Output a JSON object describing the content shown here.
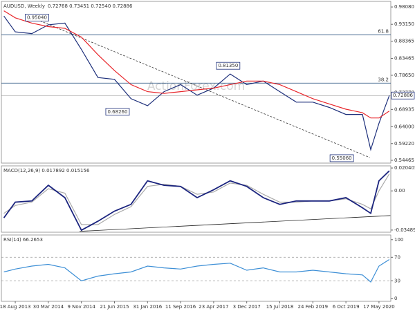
{
  "chart_data": [
    {
      "type": "line",
      "title": "AUDUSD, Weekly",
      "subtitle": "0.72768 0.73451 0.72540 0.72886",
      "watermark": "ActionForex.com",
      "x": [
        "2013-06-02",
        "2013-08-18",
        "2013-12-08",
        "2014-03-30",
        "2014-07-20",
        "2014-11-09",
        "2015-03-01",
        "2015-06-21",
        "2015-10-11",
        "2016-01-31",
        "2016-05-22",
        "2016-09-11",
        "2017-01-01",
        "2017-04-23",
        "2017-08-13",
        "2017-12-03",
        "2018-03-25",
        "2018-07-15",
        "2018-11-04",
        "2019-02-24",
        "2019-06-16",
        "2019-10-06",
        "2020-01-26",
        "2020-03-22",
        "2020-05-17",
        "2020-07-26"
      ],
      "xlim": [
        "2013-05-16",
        "2020-08-05"
      ],
      "series": [
        {
          "color": "#1c2e7a",
          "values": [
            0.955,
            0.91,
            0.905,
            0.93,
            0.935,
            0.86,
            0.78,
            0.775,
            0.72,
            0.7,
            0.74,
            0.76,
            0.73,
            0.75,
            0.79,
            0.76,
            0.77,
            0.74,
            0.71,
            0.71,
            0.695,
            0.675,
            0.675,
            0.575,
            0.65,
            0.7289
          ]
        },
        {
          "color": "#e8262b",
          "values": [
            0.97,
            0.95,
            0.935,
            0.925,
            0.92,
            0.895,
            0.845,
            0.8,
            0.76,
            0.74,
            0.735,
            0.74,
            0.745,
            0.75,
            0.76,
            0.77,
            0.77,
            0.76,
            0.74,
            0.72,
            0.705,
            0.69,
            0.68,
            0.665,
            0.665,
            0.685
          ]
        }
      ],
      "ylim": [
        0.5367,
        0.9967
      ],
      "yticks": [
        {
          "value": 0.9808,
          "label": "0.98080"
        },
        {
          "value": 0.9315,
          "label": "0.93150"
        },
        {
          "value": 0.88365,
          "label": "0.88365"
        },
        {
          "value": 0.83465,
          "label": "0.83465"
        },
        {
          "value": 0.7865,
          "label": "0.78650"
        },
        {
          "value": 0.7377,
          "label": "0.73770"
        },
        {
          "value": 0.68935,
          "label": "0.68935"
        },
        {
          "value": 0.64,
          "label": "0.64000"
        },
        {
          "value": 0.5922,
          "label": "0.59220"
        },
        {
          "value": 0.54465,
          "label": "0.54465"
        }
      ],
      "levels": [
        {
          "label": "61.8",
          "value": 0.9012,
          "color": "#1e4a7a"
        },
        {
          "label": "38.2",
          "value": 0.7642,
          "color": "#1e4a7a"
        }
      ],
      "last": {
        "value": 0.72886,
        "label": "0.72886"
      },
      "annotations": [
        {
          "label": "0.95040",
          "x": "2014-01-12",
          "value": 0.9504
        },
        {
          "label": "0.81350",
          "x": "2017-07-30",
          "value": 0.8135
        },
        {
          "label": "0.68260",
          "x": "2015-07-12",
          "value": 0.6826
        },
        {
          "label": "0.55060",
          "x": "2019-09-08",
          "value": 0.5506
        }
      ],
      "trendlines": [
        {
          "x": [
            "2014-01-12",
            "2020-03-15"
          ],
          "values": [
            0.945,
            0.5526
          ],
          "color": "#333333",
          "dashed": true
        }
      ]
    },
    {
      "type": "line",
      "title": "MACD(12,26,9) 0.017892 0.015156",
      "x": [
        "2013-06-02",
        "2013-08-18",
        "2013-12-08",
        "2014-03-30",
        "2014-07-20",
        "2014-11-09",
        "2015-03-01",
        "2015-06-21",
        "2015-10-11",
        "2016-01-31",
        "2016-05-22",
        "2016-09-11",
        "2017-01-01",
        "2017-04-23",
        "2017-08-13",
        "2017-12-03",
        "2018-03-25",
        "2018-07-15",
        "2018-11-04",
        "2019-02-24",
        "2019-06-16",
        "2019-10-06",
        "2020-01-26",
        "2020-03-22",
        "2020-05-17",
        "2020-07-26"
      ],
      "xlim": [
        "2013-05-16",
        "2020-08-05"
      ],
      "series": [
        {
          "color": "#aaaaaa",
          "values": [
            -0.02,
            -0.013,
            -0.01,
            0.002,
            -0.002,
            -0.03,
            -0.03,
            -0.021,
            -0.014,
            0.004,
            0.006,
            0.004,
            -0.003,
            -0.001,
            0.007,
            0.005,
            -0.003,
            -0.01,
            -0.01,
            -0.009,
            -0.009,
            -0.007,
            -0.012,
            -0.016,
            0.0,
            0.015156
          ]
        },
        {
          "color": "#1a237e",
          "values": [
            -0.024,
            -0.01,
            -0.009,
            0.005,
            -0.006,
            -0.035,
            -0.027,
            -0.018,
            -0.012,
            0.009,
            0.005,
            0.004,
            -0.006,
            0.001,
            0.009,
            0.004,
            -0.006,
            -0.012,
            -0.009,
            -0.009,
            -0.009,
            -0.006,
            -0.015,
            -0.02,
            0.009,
            0.017892
          ]
        }
      ],
      "ylim": [
        -0.0368,
        0.0223
      ],
      "yticks": [
        0.020405,
        {
          "value": 0,
          "label": "0.00"
        },
        -0.034892
      ],
      "trendlines": [
        {
          "x": [
            "2014-10-28",
            "2020-08-02"
          ],
          "values": [
            -0.036,
            -0.022
          ],
          "color": "#222222",
          "dashed": false
        }
      ]
    },
    {
      "type": "line",
      "title": "RSI(14) 66.2653",
      "x": [
        "2013-06-02",
        "2013-08-18",
        "2013-12-08",
        "2014-03-30",
        "2014-07-20",
        "2014-11-09",
        "2015-03-01",
        "2015-06-21",
        "2015-10-11",
        "2016-01-31",
        "2016-05-22",
        "2016-09-11",
        "2017-01-01",
        "2017-04-23",
        "2017-08-13",
        "2017-12-03",
        "2018-03-25",
        "2018-07-15",
        "2018-11-04",
        "2019-02-24",
        "2019-06-16",
        "2019-10-06",
        "2020-01-26",
        "2020-03-22",
        "2020-05-17",
        "2020-07-26"
      ],
      "xlim": [
        "2013-05-16",
        "2020-08-05"
      ],
      "series": [
        {
          "color": "#3d8fd6",
          "values": [
            45,
            50,
            55,
            58,
            52,
            30,
            38,
            42,
            45,
            55,
            52,
            50,
            55,
            58,
            60,
            48,
            52,
            45,
            45,
            48,
            45,
            42,
            40,
            28,
            55,
            66.2653
          ]
        }
      ],
      "ylim": [
        -5,
        108
      ],
      "yticks": [
        100,
        70,
        30,
        0
      ],
      "guides": [
        70,
        30
      ],
      "xticks": [
        {
          "value": "2013-08-18",
          "label": "18 Aug 2013"
        },
        {
          "value": "2014-03-30",
          "label": "30 Mar 2014"
        },
        {
          "value": "2014-11-09",
          "label": "9 Nov 2014"
        },
        {
          "value": "2015-06-21",
          "label": "21 Jun 2015"
        },
        {
          "value": "2016-01-31",
          "label": "31 Jan 2016"
        },
        {
          "value": "2016-09-11",
          "label": "11 Sep 2016"
        },
        {
          "value": "2017-04-23",
          "label": "23 Apr 2017"
        },
        {
          "value": "2017-12-03",
          "label": "3 Dec 2017"
        },
        {
          "value": "2018-07-15",
          "label": "15 Jul 2018"
        },
        {
          "value": "2019-02-24",
          "label": "24 Feb 2019"
        },
        {
          "value": "2019-10-06",
          "label": "6 Oct 2019"
        },
        {
          "value": "2020-05-17",
          "label": "17 May 2020"
        }
      ]
    }
  ]
}
